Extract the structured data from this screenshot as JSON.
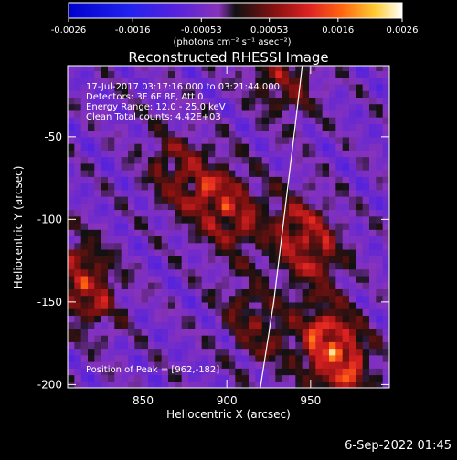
{
  "chart_data": {
    "type": "heatmap",
    "title": "Reconstructed RHESSI Image",
    "xlabel": "Heliocentric X (arcsec)",
    "ylabel": "Heliocentric Y (arcsec)",
    "xlim": [
      805,
      997
    ],
    "ylim": [
      -202,
      -7
    ],
    "xticks": [
      "850",
      "900",
      "950"
    ],
    "yticks": [
      "-50",
      "-100",
      "-150",
      "-200"
    ],
    "colorbar": {
      "ticks": [
        "-0.0026",
        "-0.0016",
        "-0.00053",
        "0.00053",
        "0.0016",
        "0.0026"
      ],
      "unit_label": "(photons cm⁻² s⁻¹ asec⁻²)",
      "range": [
        -0.0026,
        0.0026
      ]
    },
    "annotations": [
      "17-Jul-2017 03:17:16.000 to 03:21:44.000",
      "Detectors: 3F 6F 8F, Att 0",
      "Energy Range: 12.0 - 25.0 keV",
      "Clean     Total counts: 4.42E+03"
    ],
    "peak_label": "Position of Peak = [962,-182]",
    "sources": [
      {
        "x": 962,
        "y": -182,
        "value": 0.0026
      },
      {
        "x": 945,
        "y": -115,
        "value": 0.0019
      },
      {
        "x": 898,
        "y": -95,
        "value": 0.0017
      },
      {
        "x": 812,
        "y": -140,
        "value": 0.0018
      },
      {
        "x": 870,
        "y": -75,
        "value": 0.0012
      },
      {
        "x": 915,
        "y": -165,
        "value": 0.0011
      },
      {
        "x": 930,
        "y": -15,
        "value": 0.0012
      }
    ],
    "limb_curve": [
      [
        945,
        -7
      ],
      [
        940,
        -50
      ],
      [
        934,
        -100
      ],
      [
        928,
        -150
      ],
      [
        920,
        -202
      ]
    ]
  },
  "footer": {
    "timestamp": "6-Sep-2022 01:45"
  }
}
